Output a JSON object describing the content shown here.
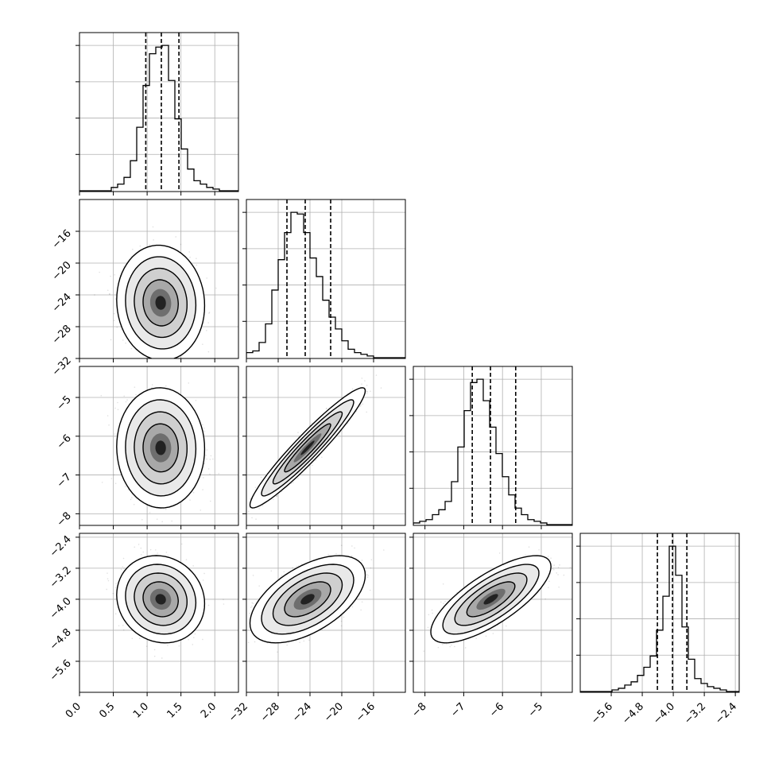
{
  "chart_data": {
    "type": "corner",
    "title": "",
    "parameters": [
      "",
      "",
      "",
      ""
    ],
    "grid": true,
    "colors": {
      "ink": "#000000",
      "grid": "#b0b0b0",
      "density_max": "#000000",
      "density_min": "#f2f2f2"
    },
    "ranges": [
      [
        0.0,
        2.35
      ],
      [
        -32,
        -12
      ],
      [
        -8.3,
        -4.2
      ],
      [
        -6.4,
        -2.3
      ]
    ],
    "tick_labels": [
      [
        "0.0",
        "0.5",
        "1.0",
        "1.5",
        "2.0"
      ],
      [
        "−32",
        "−28",
        "−24",
        "−20",
        "−16"
      ],
      [
        "−8",
        "−7",
        "−6",
        "−5"
      ],
      [
        "−5.6",
        "−4.8",
        "−4.0",
        "−3.2",
        "−2.4"
      ]
    ],
    "left_tick_labels": [
      [],
      [
        "−32",
        "−28",
        "−24",
        "−20",
        "−16"
      ],
      [
        "−8",
        "−7",
        "−6",
        "−5"
      ],
      [
        "−5.6",
        "−4.8",
        "−4.0",
        "−3.2",
        "−2.4"
      ]
    ],
    "quantiles": [
      [
        0.98,
        1.21,
        1.47
      ],
      [
        -26.9,
        -24.6,
        -21.4
      ],
      [
        -6.78,
        -6.31,
        -5.66
      ],
      [
        -4.41,
        -4.02,
        -3.65
      ]
    ],
    "marginals": [
      {
        "bin_edges": [
          0.0,
          2.35
        ],
        "counts": [
          0,
          0,
          0,
          0,
          0,
          2,
          4,
          8,
          18,
          38,
          63,
          82,
          86,
          87,
          66,
          43,
          25,
          13,
          6,
          4,
          2,
          1,
          0,
          0,
          0
        ]
      },
      {
        "bin_edges": [
          -32,
          -12
        ],
        "counts": [
          3,
          4,
          9,
          20,
          40,
          58,
          74,
          86,
          85,
          74,
          59,
          48,
          34,
          24,
          17,
          10,
          5,
          3,
          2,
          1,
          0,
          0,
          0,
          0,
          0
        ]
      },
      {
        "bin_edges": [
          -8.3,
          -4.2
        ],
        "counts": [
          1,
          2,
          3,
          6,
          9,
          14,
          26,
          47,
          69,
          86,
          88,
          75,
          59,
          43,
          29,
          18,
          10,
          6,
          3,
          2,
          1,
          0,
          0,
          0,
          0
        ]
      },
      {
        "bin_edges": [
          -6.4,
          -2.3
        ],
        "counts": [
          0,
          0,
          0,
          0,
          0,
          1,
          2,
          4,
          6,
          10,
          15,
          22,
          38,
          59,
          90,
          72,
          40,
          20,
          8,
          5,
          3,
          2,
          1,
          0,
          0
        ]
      }
    ],
    "pairs": [
      {
        "x": 0,
        "y": 1,
        "center": [
          1.2,
          -25.0
        ],
        "sd": [
          0.26,
          2.9
        ],
        "corr": -0.05
      },
      {
        "x": 0,
        "y": 2,
        "center": [
          1.2,
          -6.3
        ],
        "sd": [
          0.26,
          0.62
        ],
        "corr": -0.02
      },
      {
        "x": 1,
        "y": 2,
        "center": [
          -24.3,
          -6.3
        ],
        "sd": [
          2.9,
          0.62
        ],
        "corr": 0.95
      },
      {
        "x": 0,
        "y": 3,
        "center": [
          1.2,
          -4.0
        ],
        "sd": [
          0.26,
          0.45
        ],
        "corr": -0.1
      },
      {
        "x": 1,
        "y": 3,
        "center": [
          -24.3,
          -4.0
        ],
        "sd": [
          2.9,
          0.45
        ],
        "corr": 0.55
      },
      {
        "x": 2,
        "y": 3,
        "center": [
          -6.3,
          -4.0
        ],
        "sd": [
          0.62,
          0.45
        ],
        "corr": 0.75
      }
    ]
  }
}
